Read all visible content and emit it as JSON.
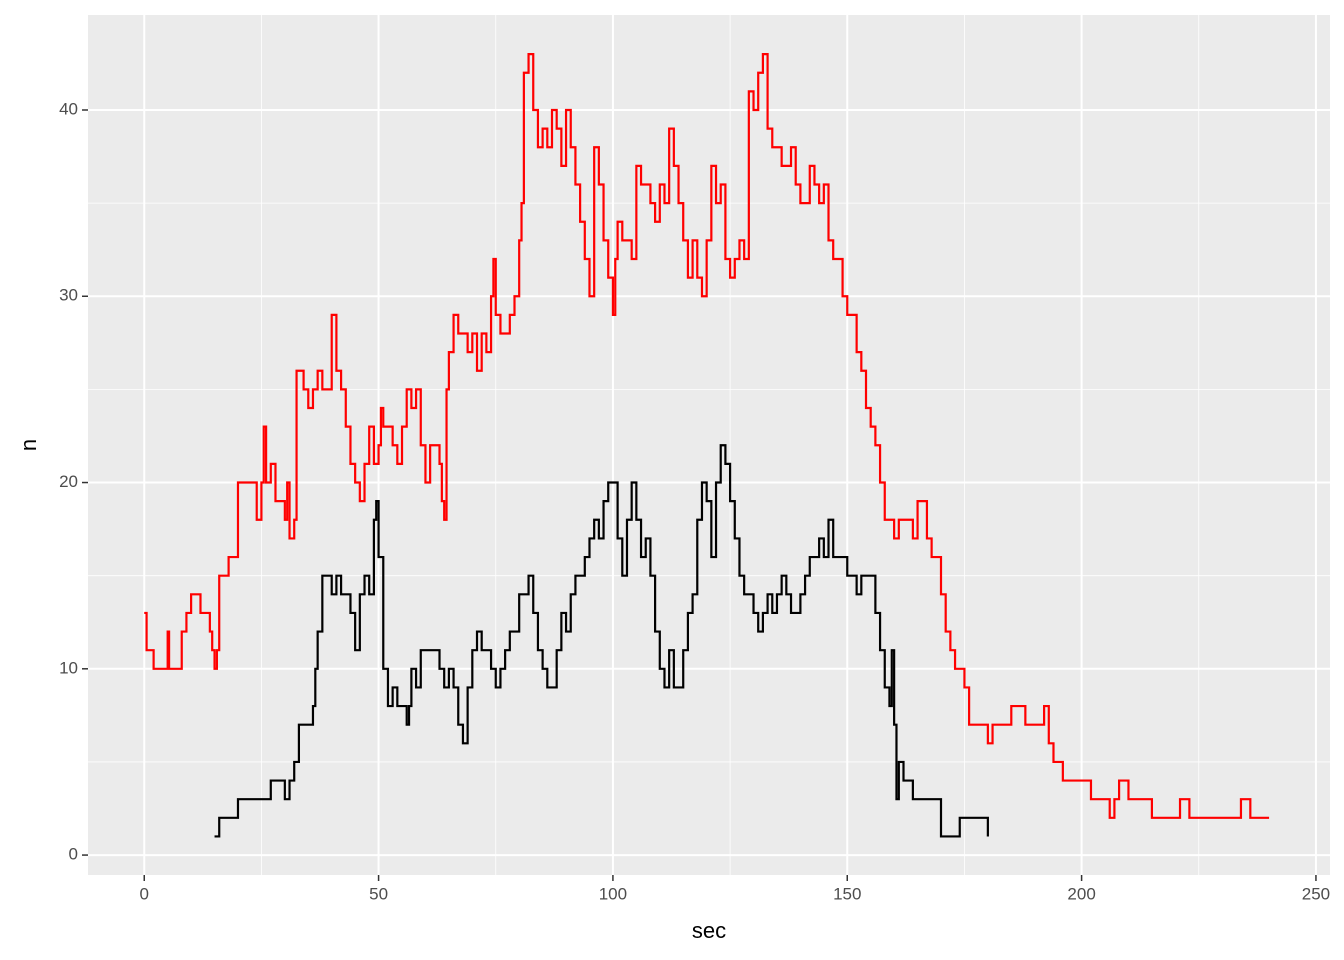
{
  "chart_data": {
    "type": "step",
    "x_label": "sec",
    "y_label": "n",
    "xlim": [
      -12,
      253
    ],
    "ylim": [
      -1.07,
      45.1
    ],
    "xticks": [
      0,
      50,
      100,
      150,
      200,
      250
    ],
    "yticks": [
      0,
      10,
      20,
      30,
      40
    ],
    "xminor_ticks": [
      25,
      75,
      125,
      175,
      225
    ],
    "yminor_ticks": [
      5,
      15,
      25,
      35
    ],
    "grid": true,
    "series": [
      {
        "color": "#ff0000",
        "x": [
          0,
          0.5,
          2,
          5,
          5.3,
          8,
          9,
          10,
          12,
          14,
          14.5,
          15,
          15.5,
          16,
          18,
          20,
          24,
          25,
          25.5,
          26,
          27,
          28,
          30,
          30.5,
          31,
          32,
          32.5,
          34,
          35,
          36,
          37,
          38,
          40,
          41,
          42,
          43,
          44,
          45,
          46,
          47,
          48,
          49,
          50,
          50.5,
          51,
          53,
          54,
          55,
          56,
          57,
          58,
          59,
          60,
          61,
          63,
          63.5,
          64,
          64.5,
          65,
          66,
          67,
          69,
          70,
          71,
          72,
          73,
          74,
          74.5,
          75,
          76,
          78,
          79,
          80,
          80.5,
          81,
          82,
          83,
          84,
          85,
          86,
          87,
          88,
          89,
          90,
          91,
          92,
          93,
          94,
          95,
          96,
          97,
          98,
          99,
          100,
          100.5,
          101,
          102,
          104,
          105,
          106,
          108,
          109,
          110,
          111,
          112,
          113,
          114,
          115,
          116,
          117,
          118,
          119,
          120,
          121,
          122,
          123,
          124,
          125,
          126,
          127,
          128,
          129,
          130,
          131,
          132,
          133,
          134,
          136,
          138,
          139,
          140,
          142,
          143,
          144,
          145,
          146,
          147,
          149,
          150,
          152,
          153,
          154,
          155,
          156,
          157,
          158,
          160,
          161,
          164,
          165,
          167,
          168,
          170,
          171,
          172,
          173,
          175,
          176,
          180,
          181,
          185,
          188,
          192,
          193,
          194,
          196,
          202,
          206,
          207,
          208,
          210,
          215,
          221,
          223,
          234,
          236,
          240
        ],
        "values": [
          13,
          11,
          10,
          12,
          10,
          12,
          13,
          14,
          13,
          12,
          11,
          10,
          11,
          15,
          16,
          20,
          18,
          20,
          23,
          20,
          21,
          19,
          18,
          20,
          17,
          18,
          26,
          25,
          24,
          25,
          26,
          25,
          29,
          26,
          25,
          23,
          21,
          20,
          19,
          21,
          23,
          21,
          22,
          24,
          23,
          22,
          21,
          23,
          25,
          24,
          25,
          22,
          20,
          22,
          21,
          19,
          18,
          25,
          27,
          29,
          28,
          27,
          28,
          26,
          28,
          27,
          30,
          32,
          29,
          28,
          29,
          30,
          33,
          35,
          42,
          43,
          40,
          38,
          39,
          38,
          40,
          39,
          37,
          40,
          38,
          36,
          34,
          32,
          30,
          38,
          36,
          33,
          31,
          29,
          32,
          34,
          33,
          32,
          37,
          36,
          35,
          34,
          36,
          35,
          39,
          37,
          35,
          33,
          31,
          33,
          31,
          30,
          33,
          37,
          35,
          36,
          32,
          31,
          32,
          33,
          32,
          41,
          40,
          42,
          43,
          39,
          38,
          37,
          38,
          36,
          35,
          37,
          36,
          35,
          36,
          33,
          32,
          30,
          29,
          27,
          26,
          24,
          23,
          22,
          20,
          18,
          17,
          18,
          17,
          19,
          17,
          16,
          14,
          12,
          11,
          10,
          9,
          7,
          6,
          7,
          8,
          7,
          8,
          6,
          5,
          4,
          3,
          2,
          3,
          4,
          3,
          2,
          3,
          2,
          3,
          2,
          2
        ]
      },
      {
        "color": "#000000",
        "x": [
          15,
          16,
          20,
          27,
          30,
          31,
          32,
          33,
          36,
          36.5,
          37,
          38,
          40,
          41,
          42,
          44,
          45,
          46,
          47,
          48,
          49,
          49.5,
          50,
          51,
          52,
          53,
          54,
          56,
          56.5,
          57,
          58,
          59,
          63,
          64,
          65,
          66,
          67,
          68,
          69,
          70,
          71,
          72,
          74,
          75,
          76,
          77,
          78,
          80,
          82,
          83,
          84,
          85,
          86,
          88,
          89,
          90,
          91,
          92,
          94,
          95,
          96,
          97,
          98,
          99,
          101,
          102,
          103,
          104,
          105,
          106,
          107,
          108,
          109,
          110,
          111,
          112,
          113,
          115,
          116,
          117,
          118,
          119,
          120,
          121,
          122,
          123,
          124,
          125,
          126,
          127,
          128,
          130,
          131,
          132,
          133,
          134,
          135,
          136,
          137,
          138,
          140,
          141,
          142,
          144,
          145,
          146,
          147,
          150,
          152,
          153,
          156,
          157,
          158,
          159,
          159.5,
          160,
          160.5,
          161,
          162,
          164,
          170,
          174,
          180
        ],
        "values": [
          1,
          2,
          3,
          4,
          3,
          4,
          5,
          7,
          8,
          10,
          12,
          15,
          14,
          15,
          14,
          13,
          11,
          14,
          15,
          14,
          18,
          19,
          16,
          10,
          8,
          9,
          8,
          7,
          8,
          10,
          9,
          11,
          10,
          9,
          10,
          9,
          7,
          6,
          9,
          11,
          12,
          11,
          10,
          9,
          10,
          11,
          12,
          14,
          15,
          13,
          11,
          10,
          9,
          11,
          13,
          12,
          14,
          15,
          16,
          17,
          18,
          17,
          19,
          20,
          17,
          15,
          18,
          20,
          18,
          16,
          17,
          15,
          12,
          10,
          9,
          11,
          9,
          11,
          13,
          14,
          18,
          20,
          19,
          16,
          20,
          22,
          21,
          19,
          17,
          15,
          14,
          13,
          12,
          13,
          14,
          13,
          14,
          15,
          14,
          13,
          14,
          15,
          16,
          17,
          16,
          18,
          16,
          15,
          14,
          15,
          13,
          11,
          9,
          8,
          11,
          7,
          3,
          5,
          4,
          3,
          1,
          2,
          1
        ]
      }
    ]
  }
}
